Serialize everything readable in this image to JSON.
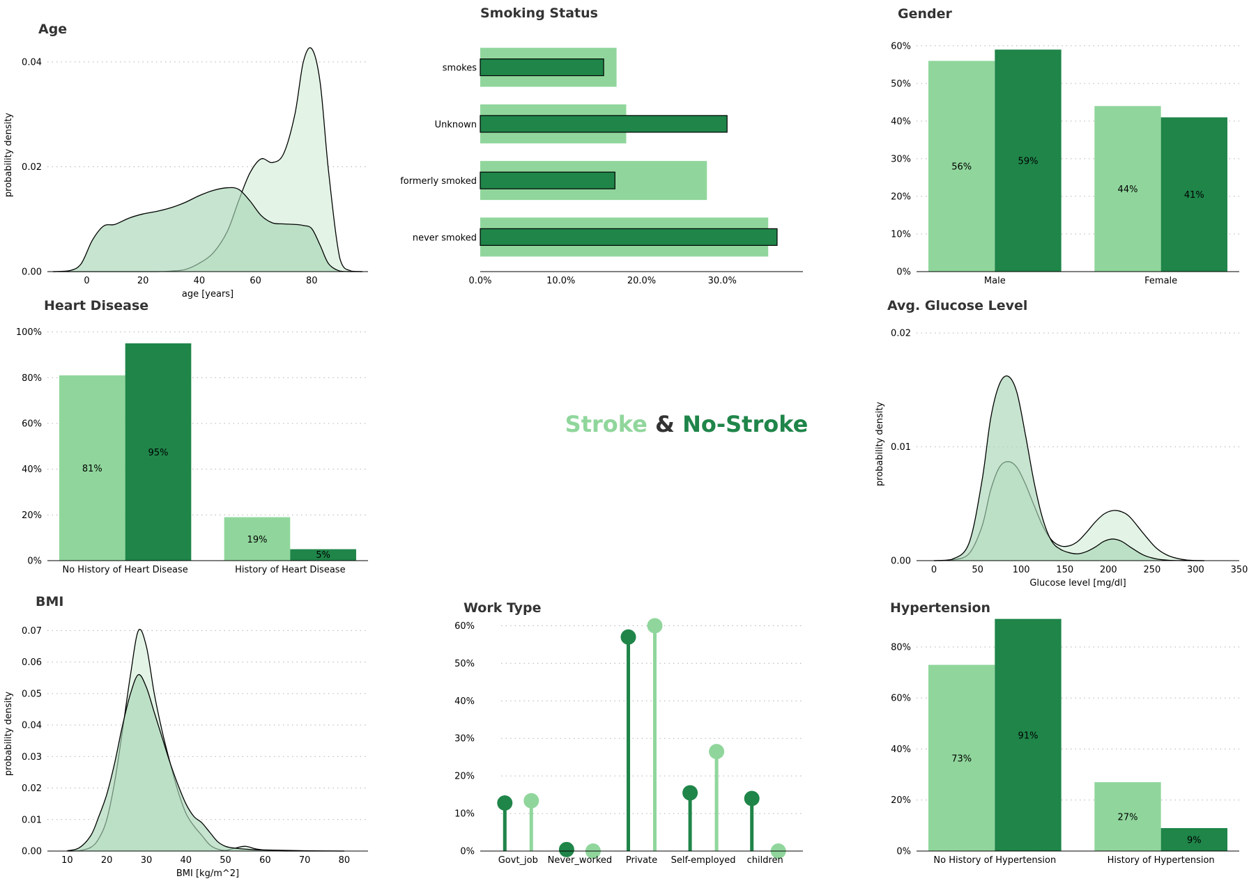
{
  "colors": {
    "stroke": "#90d69c",
    "no_stroke": "#1f8549",
    "kde_stroke_fill": "#e3f4e6",
    "kde_nostroke_fill": "#a8d6b6",
    "title": "#333333"
  },
  "legend": {
    "stroke": "Stroke",
    "amp": "&",
    "no_stroke": "No-Stroke"
  },
  "chart_data": [
    {
      "id": "age",
      "type": "area",
      "title": "Age",
      "xlabel": "age [years]",
      "ylabel": "probability density",
      "xlim": [
        -14,
        100
      ],
      "ylim": [
        0,
        0.0445
      ],
      "x_ticks": [
        0,
        20,
        40,
        60,
        80
      ],
      "y_ticks": [
        0,
        0.02,
        0.04
      ],
      "y_tick_labels": [
        "0.00",
        "0.02",
        "0.04"
      ],
      "x": [
        -12,
        -6,
        -2,
        2,
        6,
        10,
        15,
        20,
        25,
        30,
        35,
        40,
        45,
        50,
        54,
        58,
        62,
        66,
        70,
        74,
        77,
        80,
        83,
        86,
        90,
        94,
        98
      ],
      "series": [
        {
          "name": "Stroke",
          "values": [
            0,
            0,
            0,
            0,
            0,
            0,
            0,
            0,
            0,
            0.0001,
            0.0004,
            0.0016,
            0.0036,
            0.0077,
            0.0135,
            0.0188,
            0.0215,
            0.0208,
            0.0225,
            0.03,
            0.04,
            0.0425,
            0.036,
            0.019,
            0.0025,
            0.0001,
            0
          ]
        },
        {
          "name": "No-Stroke",
          "values": [
            0,
            0.0002,
            0.0015,
            0.006,
            0.0087,
            0.009,
            0.0102,
            0.011,
            0.0115,
            0.0122,
            0.0132,
            0.0145,
            0.0155,
            0.016,
            0.0157,
            0.0135,
            0.0107,
            0.0093,
            0.0091,
            0.009,
            0.0088,
            0.0082,
            0.005,
            0.0015,
            0.0001,
            0,
            0
          ]
        }
      ]
    },
    {
      "id": "smoking",
      "type": "bar",
      "orientation": "horizontal",
      "title": "Smoking Status",
      "categories": [
        "smokes",
        "Unknown",
        "formerly smoked",
        "never smoked"
      ],
      "xlim": [
        0,
        0.4
      ],
      "x_ticks": [
        0,
        0.1,
        0.2,
        0.3
      ],
      "x_tick_labels": [
        "0.0%",
        "10.0%",
        "20.0%",
        "30.0%"
      ],
      "series": [
        {
          "name": "Stroke",
          "values": [
            0.169,
            0.181,
            0.281,
            0.357
          ]
        },
        {
          "name": "No-Stroke",
          "values": [
            0.153,
            0.306,
            0.167,
            0.368
          ]
        }
      ]
    },
    {
      "id": "gender",
      "type": "bar",
      "title": "Gender",
      "categories": [
        "Male",
        "Female"
      ],
      "ylim": [
        0,
        0.62
      ],
      "y_ticks": [
        0,
        0.1,
        0.2,
        0.3,
        0.4,
        0.5,
        0.6
      ],
      "y_tick_labels": [
        "0%",
        "10%",
        "20%",
        "30%",
        "40%",
        "50%",
        "60%"
      ],
      "series": [
        {
          "name": "Stroke",
          "values": [
            0.56,
            0.44
          ],
          "labels": [
            "56%",
            "44%"
          ]
        },
        {
          "name": "No-Stroke",
          "values": [
            0.59,
            0.41
          ],
          "labels": [
            "59%",
            "41%"
          ]
        }
      ]
    },
    {
      "id": "heart",
      "type": "bar",
      "title": "Heart Disease",
      "categories": [
        "No History of Heart Disease",
        "History of Heart Disease"
      ],
      "ylim": [
        0,
        1.02
      ],
      "y_ticks": [
        0,
        0.2,
        0.4,
        0.6,
        0.8,
        1.0
      ],
      "y_tick_labels": [
        "0%",
        "20%",
        "40%",
        "60%",
        "80%",
        "100%"
      ],
      "series": [
        {
          "name": "Stroke",
          "values": [
            0.81,
            0.19
          ],
          "labels": [
            "81%",
            "19%"
          ]
        },
        {
          "name": "No-Stroke",
          "values": [
            0.95,
            0.05
          ],
          "labels": [
            "95%",
            "5%"
          ]
        }
      ]
    },
    {
      "id": "glucose",
      "type": "area",
      "title": "Avg. Glucose Level",
      "xlabel": "Glucose level [mg/dl]",
      "ylabel": "probability density",
      "xlim": [
        -20,
        350
      ],
      "ylim": [
        0,
        0.0205
      ],
      "x_ticks": [
        0,
        50,
        100,
        150,
        200,
        250,
        300,
        350
      ],
      "y_ticks": [
        0,
        0.01,
        0.02
      ],
      "y_tick_labels": [
        "0.00",
        "0.01",
        "0.02"
      ],
      "x": [
        0,
        20,
        40,
        55,
        65,
        75,
        85,
        95,
        105,
        115,
        125,
        135,
        145,
        155,
        165,
        175,
        185,
        195,
        205,
        215,
        225,
        240,
        255,
        270,
        290,
        310
      ],
      "series": [
        {
          "name": "Stroke",
          "values": [
            0,
            5e-05,
            0.0006,
            0.003,
            0.0062,
            0.0082,
            0.0087,
            0.0082,
            0.0067,
            0.0048,
            0.003,
            0.0018,
            0.0013,
            0.0013,
            0.0017,
            0.0025,
            0.0034,
            0.0041,
            0.0044,
            0.0043,
            0.0038,
            0.0024,
            0.0011,
            0.0004,
            5e-05,
            0
          ]
        },
        {
          "name": "No-Stroke",
          "values": [
            0,
            0.0001,
            0.0015,
            0.007,
            0.0125,
            0.0155,
            0.0162,
            0.0148,
            0.011,
            0.0068,
            0.0036,
            0.0017,
            0.001,
            0.0007,
            0.0006,
            0.0008,
            0.0012,
            0.0017,
            0.0019,
            0.0017,
            0.0012,
            0.0005,
            0.00015,
            3e-05,
            0,
            0
          ]
        }
      ]
    },
    {
      "id": "bmi",
      "type": "area",
      "title": "BMI",
      "xlabel": "BMI [kg/m^2]",
      "ylabel": "probability density",
      "xlim": [
        5,
        86
      ],
      "ylim": [
        0,
        0.0745
      ],
      "x_ticks": [
        10,
        20,
        30,
        40,
        50,
        60,
        70,
        80
      ],
      "y_ticks": [
        0,
        0.01,
        0.02,
        0.03,
        0.04,
        0.05,
        0.06,
        0.07
      ],
      "y_tick_labels": [
        "0.00",
        "0.01",
        "0.02",
        "0.03",
        "0.04",
        "0.05",
        "0.06",
        "0.07"
      ],
      "x": [
        10,
        13,
        16,
        18,
        20,
        22,
        24,
        26,
        28,
        30,
        32,
        34,
        36,
        38,
        40,
        42,
        44,
        46,
        48,
        50,
        52,
        55,
        58,
        62,
        70,
        80
      ],
      "series": [
        {
          "name": "Stroke",
          "values": [
            0,
            0.0001,
            0.0012,
            0.004,
            0.01,
            0.022,
            0.0385,
            0.056,
            0.07,
            0.065,
            0.05,
            0.038,
            0.028,
            0.019,
            0.012,
            0.008,
            0.005,
            0.002,
            0.0006,
            0.0002,
            0.0008,
            0.0015,
            0.0006,
            0.0001,
            0,
            0
          ]
        },
        {
          "name": "No-Stroke",
          "values": [
            0.0001,
            0.001,
            0.005,
            0.011,
            0.018,
            0.028,
            0.04,
            0.05,
            0.056,
            0.052,
            0.044,
            0.036,
            0.028,
            0.021,
            0.015,
            0.011,
            0.009,
            0.006,
            0.003,
            0.0015,
            0.001,
            0.0006,
            0.0004,
            0.0003,
            0.0001,
            0
          ]
        }
      ]
    },
    {
      "id": "work",
      "type": "scatter",
      "subtype": "lollipop",
      "title": "Work Type",
      "categories": [
        "Govt_job",
        "Never_worked",
        "Private",
        "Self-employed",
        "children"
      ],
      "ylim": [
        0,
        0.625
      ],
      "y_ticks": [
        0,
        0.1,
        0.2,
        0.3,
        0.4,
        0.5,
        0.6
      ],
      "y_tick_labels": [
        "0%",
        "10%",
        "20%",
        "30%",
        "40%",
        "50%",
        "60%"
      ],
      "series": [
        {
          "name": "No-Stroke",
          "values": [
            0.128,
            0.004,
            0.57,
            0.155,
            0.14
          ]
        },
        {
          "name": "Stroke",
          "values": [
            0.134,
            0.0,
            0.6,
            0.265,
            0.0
          ]
        }
      ]
    },
    {
      "id": "hyper",
      "type": "bar",
      "title": "Hypertension",
      "categories": [
        "No History of Hypertension",
        "History of Hypertension"
      ],
      "ylim": [
        0,
        0.92
      ],
      "y_ticks": [
        0,
        0.2,
        0.4,
        0.6,
        0.8
      ],
      "y_tick_labels": [
        "0%",
        "20%",
        "40%",
        "60%",
        "80%"
      ],
      "series": [
        {
          "name": "Stroke",
          "values": [
            0.73,
            0.27
          ],
          "labels": [
            "73%",
            "27%"
          ]
        },
        {
          "name": "No-Stroke",
          "values": [
            0.91,
            0.09
          ],
          "labels": [
            "91%",
            "9%"
          ]
        }
      ]
    }
  ]
}
